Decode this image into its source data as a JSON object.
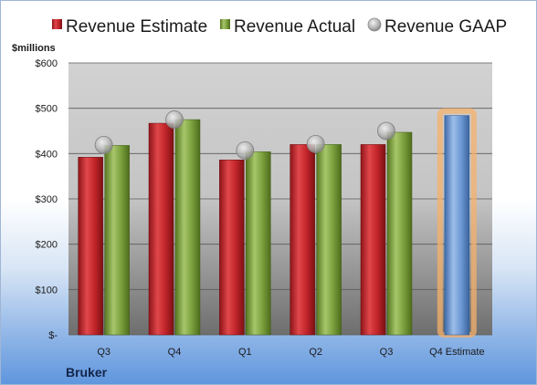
{
  "chart_data": {
    "type": "bar",
    "company": "Bruker",
    "ylabel": "$millions",
    "ylim": [
      0,
      600
    ],
    "yticks": [
      0,
      100,
      200,
      300,
      400,
      500,
      600
    ],
    "ytick_labels": [
      "$-",
      "$100",
      "$200",
      "$300",
      "$400",
      "$500",
      "$600"
    ],
    "categories": [
      "Q3",
      "Q4",
      "Q1",
      "Q2",
      "Q3",
      "Q4 Estimate"
    ],
    "legend_position": "top",
    "series": [
      {
        "name": "Revenue Estimate",
        "kind": "bar",
        "color": "#c0282d",
        "values": [
          392,
          467,
          386,
          420,
          420,
          null
        ]
      },
      {
        "name": "Revenue Actual",
        "kind": "bar",
        "color": "#79a23a",
        "values": [
          418,
          475,
          404,
          420,
          447,
          null
        ]
      },
      {
        "name": "Revenue GAAP",
        "kind": "marker",
        "color": "#a9a9a9",
        "values": [
          419,
          475,
          407,
          421,
          450,
          null
        ]
      },
      {
        "name": "Q4 Estimate",
        "kind": "bar",
        "color": "#4f81c9",
        "highlight": "#f5b06a",
        "values": [
          null,
          null,
          null,
          null,
          null,
          484
        ]
      }
    ]
  }
}
